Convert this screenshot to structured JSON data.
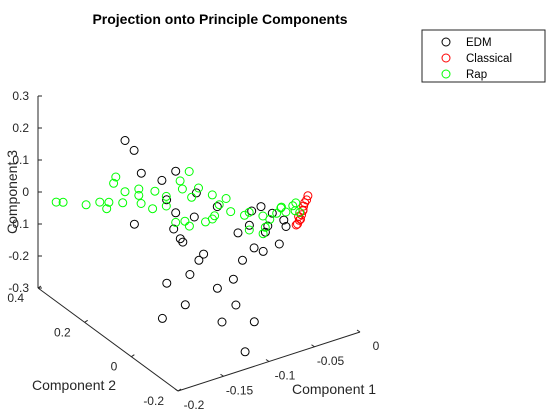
{
  "chart_data": {
    "type": "scatter",
    "title": "Projection onto Principle Components",
    "xlabel": "Component 1",
    "ylabel": "Component 2",
    "zlabel": "Component 3",
    "xlim": [
      -0.2,
      0
    ],
    "ylim": [
      -0.2,
      0.4
    ],
    "zlim": [
      -0.3,
      0.3
    ],
    "x_ticks": [
      "-0.2",
      "-0.15",
      "-0.1",
      "-0.05",
      "0"
    ],
    "y_ticks": [
      "-0.2",
      "0",
      "0.2",
      "0.4"
    ],
    "z_ticks": [
      "-0.3",
      "-0.2",
      "-0.1",
      "0",
      "0.1",
      "0.2",
      "0.3"
    ],
    "marker": "open-circle",
    "grid": false,
    "legend_position": "top-right",
    "series": [
      {
        "name": "EDM",
        "color": "#000000",
        "points": [
          [
            -0.13,
            0.3,
            0.15
          ],
          [
            -0.12,
            0.3,
            0.11
          ],
          [
            -0.125,
            0.25,
            0.07
          ],
          [
            -0.1,
            0.2,
            0.08
          ],
          [
            -0.11,
            0.22,
            0.05
          ],
          [
            -0.09,
            0.15,
            0.03
          ],
          [
            -0.1,
            0.12,
            -0.02
          ],
          [
            -0.115,
            0.15,
            -0.06
          ],
          [
            -0.13,
            0.26,
            -0.09
          ],
          [
            -0.105,
            0.15,
            -0.11
          ],
          [
            -0.095,
            0.1,
            -0.13
          ],
          [
            -0.11,
            0.1,
            -0.18
          ],
          [
            -0.12,
            0.16,
            -0.23
          ],
          [
            -0.115,
            0.1,
            -0.27
          ],
          [
            -0.13,
            0.14,
            -0.32
          ],
          [
            -0.09,
            0.06,
            -0.22
          ],
          [
            -0.08,
            0.02,
            -0.26
          ],
          [
            -0.085,
            0.06,
            -0.33
          ],
          [
            -0.075,
            0.0,
            -0.4
          ],
          [
            -0.07,
            -0.02,
            -0.3
          ],
          [
            -0.085,
            0.08,
            0.02
          ],
          [
            -0.07,
            0.05,
            -0.06
          ],
          [
            -0.06,
            0.02,
            -0.1
          ],
          [
            -0.05,
            0.0,
            -0.03
          ],
          [
            -0.045,
            0.03,
            -0.07
          ],
          [
            -0.04,
            0.02,
            -0.01
          ],
          [
            -0.06,
            0.04,
            -0.04
          ],
          [
            -0.03,
            0.0,
            -0.05
          ],
          [
            -0.055,
            0.01,
            0.03
          ],
          [
            -0.04,
            -0.01,
            -0.09
          ],
          [
            -0.05,
            0.02,
            -0.12
          ],
          [
            -0.035,
            -0.01,
            -0.02
          ],
          [
            -0.1,
            0.18,
            -0.12
          ],
          [
            -0.095,
            0.12,
            -0.16
          ],
          [
            -0.1,
            0.2,
            -0.05
          ],
          [
            -0.06,
            0.03,
            0.01
          ],
          [
            -0.11,
            0.2,
            0.0
          ],
          [
            -0.065,
            0.05,
            -0.15
          ],
          [
            -0.075,
            0.05,
            -0.2
          ]
        ]
      },
      {
        "name": "Classical",
        "color": "#ff0000",
        "points": [
          [
            -0.01,
            -0.01,
            0.02
          ],
          [
            -0.012,
            -0.005,
            0.0
          ],
          [
            -0.014,
            -0.01,
            -0.01
          ],
          [
            -0.016,
            -0.012,
            -0.02
          ],
          [
            -0.018,
            -0.015,
            -0.03
          ],
          [
            -0.02,
            -0.018,
            -0.03
          ],
          [
            -0.022,
            -0.018,
            -0.04
          ],
          [
            -0.008,
            -0.008,
            0.03
          ],
          [
            -0.015,
            -0.014,
            -0.005
          ],
          [
            -0.024,
            -0.02,
            -0.04
          ],
          [
            -0.011,
            -0.006,
            0.01
          ],
          [
            -0.02,
            -0.015,
            -0.02
          ]
        ]
      },
      {
        "name": "Rap",
        "color": "#00ff00",
        "points": [
          [
            -0.18,
            0.4,
            -0.05
          ],
          [
            -0.175,
            0.39,
            -0.05
          ],
          [
            -0.16,
            0.35,
            -0.05
          ],
          [
            -0.15,
            0.33,
            -0.04
          ],
          [
            -0.14,
            0.33,
            -0.05
          ],
          [
            -0.145,
            0.32,
            -0.06
          ],
          [
            -0.13,
            0.31,
            -0.05
          ],
          [
            -0.13,
            0.3,
            -0.01
          ],
          [
            -0.12,
            0.28,
            -0.02
          ],
          [
            -0.14,
            0.31,
            0.02
          ],
          [
            -0.135,
            0.32,
            0.03
          ],
          [
            -0.12,
            0.28,
            0.0
          ],
          [
            -0.11,
            0.25,
            0.0
          ],
          [
            -0.1,
            0.24,
            -0.02
          ],
          [
            -0.09,
            0.22,
            0.03
          ],
          [
            -0.08,
            0.22,
            0.05
          ],
          [
            -0.08,
            0.18,
            0.02
          ],
          [
            -0.07,
            0.16,
            0.0
          ],
          [
            -0.065,
            0.15,
            -0.03
          ],
          [
            -0.06,
            0.14,
            -0.01
          ],
          [
            -0.07,
            0.15,
            -0.06
          ],
          [
            -0.1,
            0.2,
            -0.08
          ],
          [
            -0.09,
            0.18,
            -0.09
          ],
          [
            -0.095,
            0.18,
            -0.07
          ],
          [
            -0.08,
            0.15,
            -0.07
          ],
          [
            -0.05,
            0.1,
            -0.05
          ],
          [
            -0.05,
            0.08,
            -0.03
          ],
          [
            -0.04,
            0.06,
            -0.04
          ],
          [
            -0.03,
            0.04,
            -0.03
          ],
          [
            -0.035,
            0.05,
            -0.05
          ],
          [
            -0.025,
            0.02,
            -0.02
          ],
          [
            -0.02,
            0.01,
            0.0
          ],
          [
            -0.03,
            0.02,
            0.0
          ],
          [
            -0.04,
            0.05,
            -0.07
          ],
          [
            -0.045,
            0.04,
            -0.08
          ],
          [
            -0.055,
            0.06,
            -0.07
          ],
          [
            -0.06,
            0.12,
            -0.04
          ],
          [
            -0.12,
            0.27,
            -0.04
          ],
          [
            -0.11,
            0.26,
            -0.06
          ],
          [
            -0.1,
            0.24,
            -0.05
          ],
          [
            -0.09,
            0.21,
            0.01
          ],
          [
            -0.085,
            0.19,
            -0.01
          ],
          [
            -0.075,
            0.14,
            -0.06
          ],
          [
            -0.028,
            0.03,
            -0.01
          ],
          [
            -0.02,
            0.0,
            -0.01
          ],
          [
            -0.018,
            0.005,
            0.01
          ],
          [
            -0.015,
            0.0,
            -0.02
          ]
        ]
      }
    ]
  }
}
